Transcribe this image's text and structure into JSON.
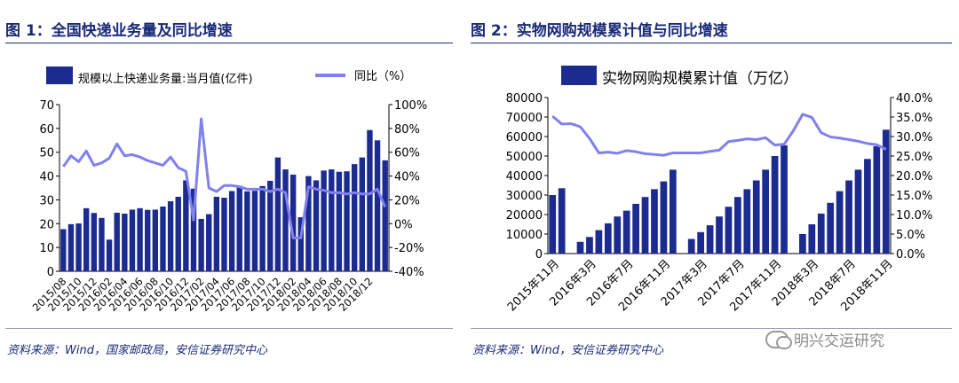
{
  "panels": [
    {
      "title": "图 1：全国快递业务量及同比增速",
      "source": "资料来源：Wind，国家邮政局，安信证券研究中心"
    },
    {
      "title": "图 2：实物网购规模累计值与同比增速",
      "source": "资料来源：Wind，安信证券研究中心"
    }
  ],
  "watermark": "明兴交运研究",
  "colors": {
    "bar": "#1c2b8f",
    "line": "#8080ee",
    "title": "#1a2a78"
  },
  "chart_data": [
    {
      "type": "bar",
      "legend": {
        "bar": "规模以上快递业务量:当月值(亿件)",
        "line": "同比（%）"
      },
      "x_tick_labels": [
        "2015/08",
        "2015/10",
        "2015/12",
        "2016/02",
        "2016/04",
        "2016/06",
        "2016/08",
        "2016/10",
        "2016/12",
        "2017/02",
        "2017/04",
        "2017/06",
        "2017/08",
        "2017/10",
        "2017/12",
        "2018/02",
        "2018/04",
        "2018/06",
        "2018/08",
        "2018/10",
        "2018/12"
      ],
      "y_left": {
        "min": 0,
        "max": 70,
        "ticks": [
          "0",
          "10",
          "20",
          "30",
          "40",
          "50",
          "60",
          "70"
        ]
      },
      "y_right": {
        "min": -40,
        "max": 100,
        "ticks": [
          "-40%",
          "-20%",
          "0%",
          "20%",
          "40%",
          "60%",
          "80%",
          "100%"
        ]
      },
      "series": [
        {
          "name": "规模以上快递业务量:当月值(亿件)",
          "type": "bar",
          "values": [
            17.7,
            19.8,
            20.1,
            26.5,
            24.5,
            22.4,
            13.3,
            24.6,
            24.2,
            25.9,
            26.5,
            25.8,
            25.9,
            27.2,
            29.4,
            31.3,
            38.2,
            34.7,
            22.0,
            24.0,
            31.3,
            30.9,
            33.7,
            35.9,
            33.6,
            33.8,
            35.8,
            38.0,
            47.8,
            42.8,
            40.6,
            22.7,
            40.0,
            38.2,
            42.3,
            42.8,
            41.8,
            42.0,
            45.0,
            47.8,
            59.3,
            55.0,
            46.6
          ]
        },
        {
          "name": "同比（%）",
          "type": "line",
          "values": [
            48,
            57,
            52,
            61,
            49,
            51,
            55,
            67,
            57,
            58,
            56,
            53,
            51,
            49,
            56,
            47,
            44,
            3,
            88,
            30,
            27,
            32,
            32,
            31,
            29,
            29,
            29,
            27,
            29,
            26,
            -12,
            -12,
            31,
            29,
            28,
            26,
            26,
            25,
            26,
            25,
            25,
            29,
            14
          ]
        }
      ]
    },
    {
      "type": "bar",
      "legend": {
        "bar": "实物网购规模累计值（万亿）"
      },
      "x_tick_labels": [
        "2015年11月",
        "2016年3月",
        "2016年7月",
        "2016年11月",
        "2017年3月",
        "2017年7月",
        "2017年11月",
        "2018年3月",
        "2018年7月",
        "2018年11月"
      ],
      "y_left": {
        "min": 0,
        "max": 80000,
        "ticks": [
          "0",
          "10000",
          "20000",
          "30000",
          "40000",
          "50000",
          "60000",
          "70000",
          "80000"
        ]
      },
      "y_right": {
        "min": 0,
        "max": 40,
        "ticks": [
          "0.0%",
          "5.0%",
          "10.0%",
          "15.0%",
          "20.0%",
          "25.0%",
          "30.0%",
          "35.0%",
          "40.0%"
        ]
      },
      "series": [
        {
          "name": "实物网购规模累计值（万亿）",
          "type": "bar",
          "values": [
            30000,
            33500,
            null,
            6000,
            8500,
            12000,
            15500,
            19000,
            22000,
            25500,
            29000,
            33000,
            37000,
            43000,
            null,
            7500,
            11000,
            14500,
            19000,
            24000,
            29000,
            33000,
            37500,
            43000,
            50000,
            55500,
            null,
            10000,
            15000,
            20500,
            26000,
            32000,
            37500,
            43000,
            48500,
            55000,
            63500
          ]
        },
        {
          "name": "同比",
          "type": "line",
          "values": [
            35.2,
            33.2,
            33.3,
            32.5,
            29.5,
            25.8,
            26.0,
            25.7,
            26.4,
            26.1,
            25.6,
            25.4,
            25.2,
            25.8,
            25.8,
            25.8,
            25.8,
            26.2,
            26.5,
            28.7,
            29.0,
            29.4,
            29.2,
            29.7,
            27.8,
            28.0,
            31.5,
            35.7,
            34.9,
            31.0,
            29.9,
            29.6,
            29.2,
            28.8,
            28.2,
            27.9,
            26.7
          ]
        }
      ]
    }
  ]
}
